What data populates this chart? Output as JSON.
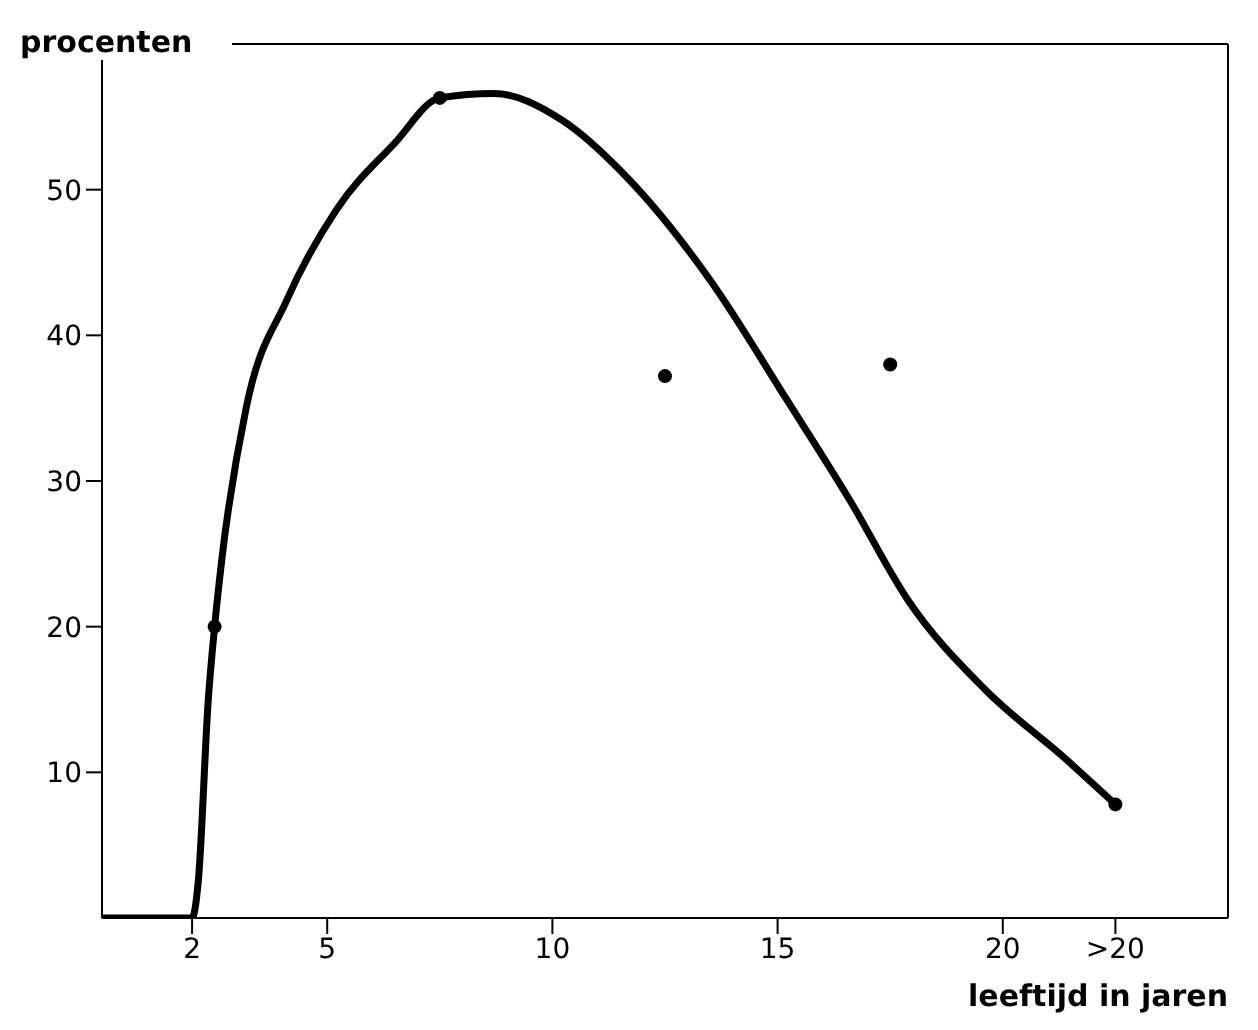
{
  "chart_data": {
    "type": "line",
    "xlabel": "leeftijd in jaren",
    "ylabel": "procenten",
    "xlim": [
      0,
      25
    ],
    "ylim": [
      0,
      60
    ],
    "xticks": [
      2,
      5,
      10,
      15,
      20,
      {
        "value": 22.5,
        "label": ">20"
      }
    ],
    "yticks": [
      10,
      20,
      30,
      40,
      50
    ],
    "series": [
      {
        "color": "#000000",
        "marker": "none",
        "x": [
          0,
          2,
          2.14,
          2.36,
          2.5,
          2.66,
          3.2,
          4.1,
          5.2,
          6.5,
          7.5,
          8.7,
          10.2,
          11.7,
          13.5,
          15.2,
          16.6,
          17.9,
          19.6,
          21.4,
          22.5
        ],
        "values": [
          0,
          0,
          2.6,
          15,
          20,
          24.6,
          35,
          42.4,
          48.6,
          53.2,
          56.3,
          56.6,
          54.8,
          50.7,
          43.8,
          35.6,
          28.7,
          21.8,
          15.7,
          10.9,
          7.8
        ]
      },
      {
        "type": "scatter",
        "color": "#000000",
        "marker": "circle",
        "x": [
          2.5,
          7.5,
          12.5,
          17.5,
          22.5
        ],
        "values": [
          20,
          56.3,
          37.2,
          38,
          7.8
        ]
      }
    ]
  }
}
